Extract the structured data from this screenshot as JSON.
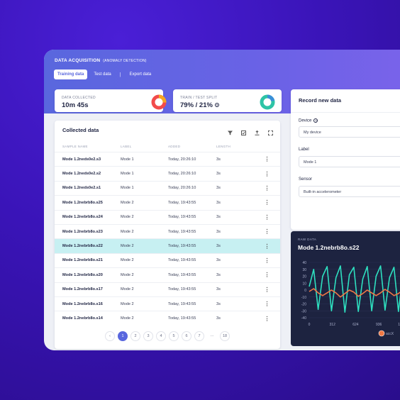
{
  "header": {
    "title": "DATA ACQUISITION",
    "subtitle": "(ANOMALY DETECTION)",
    "tabs": [
      {
        "label": "Training data"
      },
      {
        "label": "Test data"
      },
      {
        "label": "Export data"
      }
    ]
  },
  "stats": {
    "collected": {
      "label": "DATA COLLECTED",
      "value": "10m 45s",
      "color": "#f24b4b"
    },
    "split": {
      "label": "TRAIN / TEST SPLIT",
      "value": "79% / 21%",
      "color": "#2ec4a6",
      "train_fraction": 0.79
    }
  },
  "table": {
    "title": "Collected data",
    "tools": [
      "filter-icon",
      "select-icon",
      "upload-icon",
      "expand-icon"
    ],
    "columns": [
      "SAMPLE NAME",
      "LABEL",
      "ADDED",
      "LENGTH"
    ],
    "rows": [
      [
        "Mode 1.2neds0e2.s3",
        "Mode 1",
        "Today, 20:26:10",
        "3s"
      ],
      [
        "Mode 1.2neds0e2.s2",
        "Mode 1",
        "Today, 20:26:10",
        "3s"
      ],
      [
        "Mode 1.2neds0e2.s1",
        "Mode 1",
        "Today, 20:26:10",
        "3s"
      ],
      [
        "Mode 1.2nebrb8o.s25",
        "Mode 2",
        "Today, 19:43:55",
        "3s"
      ],
      [
        "Mode 1.2nebrb8o.s24",
        "Mode 2",
        "Today, 19:43:55",
        "3s"
      ],
      [
        "Mode 1.2nebrb8o.s23",
        "Mode 2",
        "Today, 19:43:55",
        "3s"
      ],
      [
        "Mode 1.2nebrb8o.s22",
        "Mode 2",
        "Today, 19:43:55",
        "3s"
      ],
      [
        "Mode 1.2nebrb8o.s21",
        "Mode 2",
        "Today, 19:43:55",
        "3s"
      ],
      [
        "Mode 1.2nebrb8o.s20",
        "Mode 2",
        "Today, 19:43:55",
        "3s"
      ],
      [
        "Mode 1.2nebrb8o.s17",
        "Mode 2",
        "Today, 19:43:55",
        "3s"
      ],
      [
        "Mode 1.2nebrb8o.s16",
        "Mode 2",
        "Today, 19:43:55",
        "3s"
      ],
      [
        "Mode 1.2nebrb8o.s14",
        "Mode 2",
        "Today, 19:43:55",
        "3s"
      ]
    ],
    "selected_row": 6,
    "pagination": {
      "prev": "‹",
      "pages": [
        "1",
        "2",
        "3",
        "4",
        "5",
        "6",
        "7",
        "···",
        "18"
      ],
      "active": "1"
    }
  },
  "record": {
    "title": "Record new data",
    "device_label": "Device",
    "device_value": "My device",
    "label_label": "Label",
    "label_value": "Mode 1",
    "sensor_label": "Sensor",
    "sensor_value": "Built-in accelerometer"
  },
  "raw": {
    "label": "RAW DATA",
    "title": "Mode 1.2nebrb8o.s22",
    "chart_data": {
      "type": "line",
      "y_ticks": [
        40,
        30,
        20,
        10,
        0,
        -10,
        -20,
        -30,
        -40
      ],
      "x_ticks": [
        0,
        312,
        624,
        936,
        1248
      ],
      "ylim": [
        -40,
        40
      ],
      "xlim": [
        0,
        1450
      ],
      "legend": [
        {
          "name": "accX",
          "color": "#f07845"
        }
      ],
      "series": [
        {
          "name": "accX",
          "color": "#f07845",
          "x": [
            0,
            60,
            120,
            180,
            240,
            300,
            360,
            420,
            480,
            540,
            600,
            660,
            720,
            780,
            840,
            900,
            960,
            1020,
            1080,
            1140,
            1200,
            1260,
            1320,
            1380,
            1440
          ],
          "y": [
            -2,
            2,
            -4,
            -8,
            -4,
            0,
            -4,
            -10,
            -5,
            0,
            -3,
            -9,
            -5,
            0,
            -4,
            -8,
            -4,
            1,
            -3,
            -8,
            -5,
            0,
            -4,
            -9,
            -5
          ]
        },
        {
          "name": "",
          "color": "#2ee0c0",
          "x": [
            0,
            60,
            120,
            180,
            240,
            300,
            360,
            420,
            480,
            540,
            600,
            660,
            720,
            780,
            840,
            900,
            960,
            1020,
            1080,
            1140,
            1200,
            1260,
            1320,
            1380,
            1440
          ],
          "y": [
            5,
            30,
            -28,
            20,
            34,
            -30,
            18,
            35,
            -32,
            22,
            33,
            -31,
            16,
            34,
            -30,
            20,
            35,
            -29,
            18,
            33,
            -31,
            22,
            34,
            -30,
            15
          ]
        }
      ]
    }
  }
}
